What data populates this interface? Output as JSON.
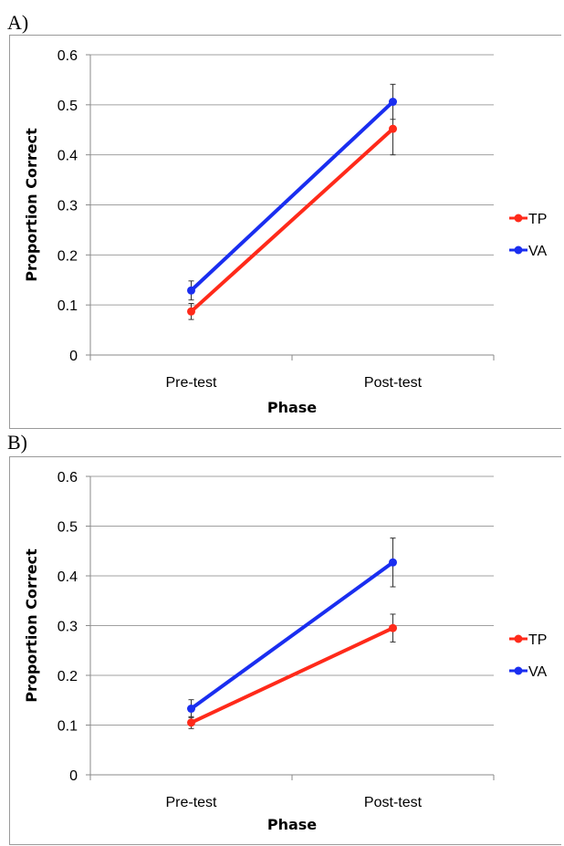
{
  "panels": [
    {
      "label": "A)"
    },
    {
      "label": "B)"
    }
  ],
  "chart_data": [
    {
      "type": "line",
      "title": "",
      "xlabel": "Phase",
      "ylabel": "Proportion Correct",
      "categories": [
        "Pre-test",
        "Post-test"
      ],
      "ylim": [
        0,
        0.6
      ],
      "yticks": [
        "0",
        "0.1",
        "0.2",
        "0.3",
        "0.4",
        "0.5",
        "0.6"
      ],
      "grid": true,
      "legend_position": "right",
      "series": [
        {
          "name": "TP",
          "color": "#ff2a1a",
          "values": [
            0.087,
            0.452
          ],
          "errors": [
            0.016,
            0.052
          ]
        },
        {
          "name": "VA",
          "color": "#1a2ef0",
          "values": [
            0.129,
            0.506
          ],
          "errors": [
            0.019,
            0.035
          ]
        }
      ]
    },
    {
      "type": "line",
      "title": "",
      "xlabel": "Phase",
      "ylabel": "Proportion Correct",
      "categories": [
        "Pre-test",
        "Post-test"
      ],
      "ylim": [
        0,
        0.6
      ],
      "yticks": [
        "0",
        "0.1",
        "0.2",
        "0.3",
        "0.4",
        "0.5",
        "0.6"
      ],
      "grid": true,
      "legend_position": "right",
      "series": [
        {
          "name": "TP",
          "color": "#ff2a1a",
          "values": [
            0.105,
            0.295
          ],
          "errors": [
            0.012,
            0.028
          ]
        },
        {
          "name": "VA",
          "color": "#1a2ef0",
          "values": [
            0.133,
            0.427
          ],
          "errors": [
            0.018,
            0.049
          ]
        }
      ]
    }
  ]
}
